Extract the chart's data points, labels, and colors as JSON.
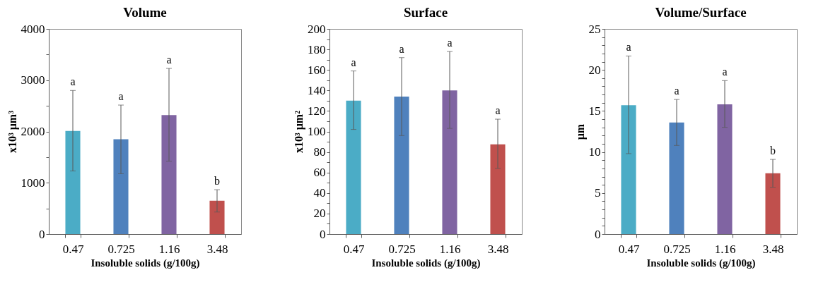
{
  "chart_data": [
    {
      "type": "bar",
      "title": "Volume",
      "xlabel": "Insoluble solids (g/100g)",
      "ylabel": "x10³ μm³",
      "categories": [
        "0.47",
        "0.725",
        "1.16",
        "3.48"
      ],
      "values": [
        2010,
        1850,
        2320,
        650
      ],
      "colors": [
        "#4bacc6",
        "#4f81bd",
        "#8064a2",
        "#c0504d"
      ],
      "errors": [
        [
          1230,
          2800
        ],
        [
          1175,
          2515
        ],
        [
          1420,
          3230
        ],
        [
          430,
          865
        ]
      ],
      "ylim": [
        0,
        4000
      ],
      "yticks": [
        0,
        {
          "value": 500,
          "label": null
        },
        1000,
        {
          "value": 1500,
          "label": null
        },
        2000,
        {
          "value": 2500,
          "label": null
        },
        3000,
        {
          "value": 3500,
          "label": null
        },
        4000
      ],
      "grid": false,
      "legend": false,
      "annotations": [
        {
          "text": "a",
          "x": "0.47",
          "y": 2800
        },
        {
          "text": "a",
          "x": "0.725",
          "y": 2515
        },
        {
          "text": "a",
          "x": "1.16",
          "y": 3230
        },
        {
          "text": "b",
          "x": "3.48",
          "y": 865
        }
      ]
    },
    {
      "type": "bar",
      "title": "Surface",
      "xlabel": "Insoluble solids (g/100g)",
      "ylabel": "x10³ μm²",
      "categories": [
        "0.47",
        "0.725",
        "1.16",
        "3.48"
      ],
      "values": [
        130,
        134,
        140,
        87.5
      ],
      "colors": [
        "#4bacc6",
        "#4f81bd",
        "#8064a2",
        "#c0504d"
      ],
      "errors": [
        [
          102,
          159
        ],
        [
          96,
          172
        ],
        [
          103,
          178
        ],
        [
          64,
          112
        ]
      ],
      "ylim": [
        0,
        200
      ],
      "yticks": [
        0,
        {
          "value": 10,
          "label": null
        },
        20,
        {
          "value": 30,
          "label": null
        },
        40,
        {
          "value": 50,
          "label": null
        },
        60,
        {
          "value": 70,
          "label": null
        },
        80,
        {
          "value": 90,
          "label": null
        },
        100,
        {
          "value": 110,
          "label": null
        },
        120,
        {
          "value": 130,
          "label": null
        },
        140,
        {
          "value": 150,
          "label": null
        },
        160,
        {
          "value": 170,
          "label": null
        },
        180,
        {
          "value": 190,
          "label": null
        },
        200
      ],
      "grid": false,
      "legend": false,
      "annotations": [
        {
          "text": "a",
          "x": "0.47",
          "y": 159
        },
        {
          "text": "a",
          "x": "0.725",
          "y": 172
        },
        {
          "text": "a",
          "x": "1.16",
          "y": 178
        },
        {
          "text": "a",
          "x": "3.48",
          "y": 112
        }
      ]
    },
    {
      "type": "bar",
      "title": "Volume/Surface",
      "xlabel": "Insoluble solids (g/100g)",
      "ylabel": "μm",
      "categories": [
        "0.47",
        "0.725",
        "1.16",
        "3.48"
      ],
      "values": [
        15.7,
        13.6,
        15.8,
        7.4
      ],
      "colors": [
        "#4bacc6",
        "#4f81bd",
        "#8064a2",
        "#c0504d"
      ],
      "errors": [
        [
          9.8,
          21.7
        ],
        [
          10.8,
          16.4
        ],
        [
          13,
          18.7
        ],
        [
          5.7,
          9.1
        ]
      ],
      "ylim": [
        0,
        25
      ],
      "yticks": [
        0,
        {
          "value": 1,
          "label": null
        },
        {
          "value": 2,
          "label": null
        },
        {
          "value": 3,
          "label": null
        },
        {
          "value": 4,
          "label": null
        },
        5,
        {
          "value": 6,
          "label": null
        },
        {
          "value": 7,
          "label": null
        },
        {
          "value": 8,
          "label": null
        },
        {
          "value": 9,
          "label": null
        },
        10,
        {
          "value": 11,
          "label": null
        },
        {
          "value": 12,
          "label": null
        },
        {
          "value": 13,
          "label": null
        },
        {
          "value": 14,
          "label": null
        },
        15,
        {
          "value": 16,
          "label": null
        },
        {
          "value": 17,
          "label": null
        },
        {
          "value": 18,
          "label": null
        },
        {
          "value": 19,
          "label": null
        },
        20,
        {
          "value": 21,
          "label": null
        },
        {
          "value": 22,
          "label": null
        },
        {
          "value": 23,
          "label": null
        },
        {
          "value": 24,
          "label": null
        },
        25
      ],
      "grid": false,
      "legend": false,
      "annotations": [
        {
          "text": "a",
          "x": "0.47",
          "y": 21.7
        },
        {
          "text": "a",
          "x": "0.725",
          "y": 16.4
        },
        {
          "text": "a",
          "x": "1.16",
          "y": 18.7
        },
        {
          "text": "b",
          "x": "3.48",
          "y": 9.1
        }
      ]
    }
  ]
}
